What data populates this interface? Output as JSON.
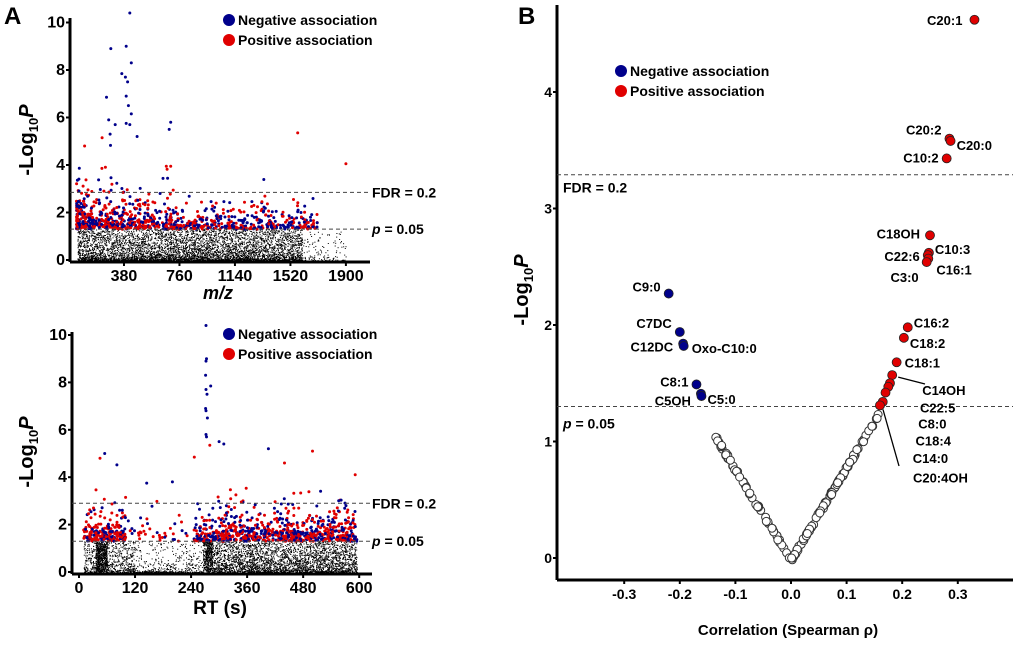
{
  "colors": {
    "negative": "#00008b",
    "positive": "#e00000",
    "nonsignificant": "#000000"
  },
  "chart_data": [
    {
      "panel": "A",
      "type": "scatter",
      "xlabel": "m/z",
      "ylabel": {
        "pre": "-Log",
        "sub": "10",
        "post": "P"
      },
      "xticks": [
        "380",
        "760",
        "1140",
        "1520",
        "1900"
      ],
      "yticks": [
        "0",
        "2",
        "4",
        "6",
        "8",
        "10"
      ],
      "xlim": [
        0,
        2050
      ],
      "ylim": [
        0,
        10.5
      ],
      "legend": {
        "placement": "top-right",
        "entries": [
          "Negative association",
          "Positive association"
        ]
      },
      "thresholds": [
        {
          "label": "FDR = 0.2",
          "y": 2.85
        },
        {
          "label_italic": "p",
          "label_rest": " = 0.05",
          "y": 1.3
        }
      ]
    },
    {
      "panel": "",
      "type": "scatter",
      "xlabel": "RT (s)",
      "ylabel": {
        "pre": "-Log",
        "sub": "10",
        "post": "P"
      },
      "xticks": [
        "0",
        "120",
        "240",
        "360",
        "480",
        "600"
      ],
      "yticks": [
        "0",
        "2",
        "4",
        "6",
        "8",
        "10"
      ],
      "xlim": [
        -15,
        630
      ],
      "ylim": [
        0,
        10.5
      ],
      "legend": {
        "placement": "top-right",
        "entries": [
          "Negative association",
          "Positive association"
        ]
      },
      "thresholds": [
        {
          "label": "FDR = 0.2",
          "y": 2.9
        },
        {
          "label_italic": "p",
          "label_rest": " = 0.05",
          "y": 1.3
        }
      ]
    },
    {
      "panel": "B",
      "type": "scatter",
      "xlabel": "Correlation (Spearman ρ)",
      "ylabel": {
        "pre": "-Log",
        "sub": "10",
        "post": "P"
      },
      "xticks": [
        "-0.3",
        "-0.2",
        "-0.1",
        "0.0",
        "0.1",
        "0.2",
        "0.3"
      ],
      "yticks": [
        "0",
        "1",
        "2",
        "3",
        "4"
      ],
      "xlim": [
        -0.4,
        0.4
      ],
      "ylim": [
        -0.2,
        4.75
      ],
      "legend": {
        "placement": "top-left",
        "entries": [
          "Negative association",
          "Positive association"
        ]
      },
      "thresholds": [
        {
          "label": "FDR = 0.2",
          "y": 3.29
        },
        {
          "label_italic": "p",
          "label_rest": " = 0.05",
          "y": 1.3
        }
      ],
      "labeled_points": [
        {
          "name": "C20:1",
          "rho": 0.33,
          "y": 4.62,
          "assoc": "positive"
        },
        {
          "name": "C20:2",
          "rho": 0.285,
          "y": 3.6,
          "assoc": "positive"
        },
        {
          "name": "C20:0",
          "rho": 0.287,
          "y": 3.58,
          "assoc": "positive"
        },
        {
          "name": "C10:2",
          "rho": 0.28,
          "y": 3.43,
          "assoc": "positive"
        },
        {
          "name": "C18OH",
          "rho": 0.25,
          "y": 2.77,
          "assoc": "positive"
        },
        {
          "name": "C10:3",
          "rho": 0.248,
          "y": 2.62,
          "assoc": "positive"
        },
        {
          "name": "C22:6",
          "rho": 0.246,
          "y": 2.6,
          "assoc": "positive"
        },
        {
          "name": "C16:1",
          "rho": 0.247,
          "y": 2.57,
          "assoc": "positive"
        },
        {
          "name": "C3:0",
          "rho": 0.244,
          "y": 2.54,
          "assoc": "positive"
        },
        {
          "name": "C9:0",
          "rho": -0.22,
          "y": 2.27,
          "assoc": "negative"
        },
        {
          "name": "C7DC",
          "rho": -0.2,
          "y": 1.94,
          "assoc": "negative"
        },
        {
          "name": "C12DC",
          "rho": -0.194,
          "y": 1.84,
          "assoc": "negative"
        },
        {
          "name": "Oxo-C10:0",
          "rho": -0.193,
          "y": 1.82,
          "assoc": "negative"
        },
        {
          "name": "C8:1",
          "rho": -0.17,
          "y": 1.49,
          "assoc": "negative"
        },
        {
          "name": "C5OH",
          "rho": -0.162,
          "y": 1.41,
          "assoc": "negative"
        },
        {
          "name": "C5:0",
          "rho": -0.161,
          "y": 1.39,
          "assoc": "negative"
        },
        {
          "name": "C16:2",
          "rho": 0.21,
          "y": 1.98,
          "assoc": "positive"
        },
        {
          "name": "C18:2",
          "rho": 0.203,
          "y": 1.89,
          "assoc": "positive"
        },
        {
          "name": "C18:1",
          "rho": 0.19,
          "y": 1.68,
          "assoc": "positive"
        },
        {
          "name": "C14OH",
          "rho": 0.182,
          "y": 1.57,
          "assoc": "positive"
        },
        {
          "name": "C22:5",
          "rho": 0.178,
          "y": 1.5,
          "assoc": "positive"
        },
        {
          "name": "C8:0",
          "rho": 0.175,
          "y": 1.47,
          "assoc": "positive"
        },
        {
          "name": "C18:4",
          "rho": 0.17,
          "y": 1.42,
          "assoc": "positive"
        },
        {
          "name": "C14:0",
          "rho": 0.165,
          "y": 1.34,
          "assoc": "positive"
        },
        {
          "name": "C20:4OH",
          "rho": 0.16,
          "y": 1.31,
          "assoc": "positive"
        }
      ]
    }
  ]
}
